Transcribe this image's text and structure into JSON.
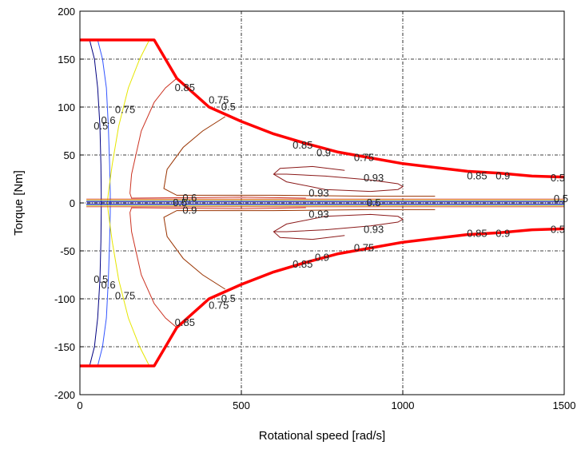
{
  "chart_data": {
    "type": "line",
    "title": "",
    "xlabel": "Rotational speed [rad/s]",
    "ylabel": "Torque [Nm]",
    "xlim": [
      0,
      1500
    ],
    "ylim": [
      -200,
      200
    ],
    "x_ticks": [
      0,
      500,
      1000,
      1500
    ],
    "y_ticks": [
      -200,
      -150,
      -100,
      -50,
      0,
      50,
      100,
      150,
      200
    ],
    "grid": true,
    "grid_style": "dash-dot",
    "colors": {
      "boundary": "#ff0000",
      "c050": "#000080",
      "c060": "#3355ff",
      "c075": "#e6e600",
      "c085": "#cc3322",
      "c090": "#993300",
      "c093": "#8b1a1a"
    },
    "series": [
      {
        "name": "",
        "role": "max-torque envelope",
        "x": [
          0,
          230,
          300,
          400,
          500,
          600,
          700,
          800,
          900,
          1000,
          1100,
          1200,
          1300,
          1400,
          1500
        ],
        "y": [
          170,
          170,
          130,
          100,
          85,
          72,
          62,
          53,
          47,
          41,
          37,
          33,
          31,
          28,
          27
        ]
      },
      {
        "name": "",
        "role": "min-torque envelope",
        "x": [
          0,
          230,
          300,
          400,
          500,
          600,
          700,
          800,
          900,
          1000,
          1100,
          1200,
          1300,
          1400,
          1500
        ],
        "y": [
          -170,
          -170,
          -130,
          -100,
          -85,
          -72,
          -62,
          -53,
          -47,
          -41,
          -37,
          -33,
          -31,
          -28,
          -27
        ]
      }
    ],
    "contours": [
      {
        "level": "0.5",
        "x_upper": [
          30,
          45,
          55,
          62,
          65,
          66,
          66
        ],
        "y_upper": [
          170,
          150,
          120,
          80,
          40,
          10,
          0
        ]
      },
      {
        "level": "0.6",
        "x_upper": [
          55,
          70,
          82,
          88,
          92,
          94,
          94
        ],
        "y_upper": [
          170,
          150,
          120,
          80,
          40,
          10,
          0
        ]
      },
      {
        "level": "0.75",
        "x_upper": [
          215,
          185,
          150,
          120,
          100,
          88,
          85
        ],
        "y_upper": [
          170,
          150,
          120,
          80,
          40,
          10,
          0
        ]
      },
      {
        "level": "0.85",
        "x_upper": [
          300,
          265,
          230,
          190,
          160,
          155,
          160,
          500,
          700
        ],
        "y_upper": [
          130,
          120,
          105,
          75,
          30,
          10,
          5,
          6,
          5
        ]
      },
      {
        "level": "0.9",
        "x_upper": [
          450,
          380,
          320,
          270,
          260,
          300,
          600,
          900,
          1100
        ],
        "y_upper": [
          90,
          75,
          58,
          35,
          15,
          8,
          8,
          7,
          7
        ]
      },
      {
        "level": "0.93",
        "x_upper": [
          820,
          720,
          620,
          600,
          640,
          760,
          900,
          985,
          1000,
          985,
          900,
          760,
          640,
          600
        ],
        "y_upper": [
          34,
          38,
          36,
          30,
          22,
          14,
          12,
          14,
          17,
          20,
          24,
          28,
          30,
          30
        ]
      }
    ],
    "contour_labels": [
      {
        "text": "0.5",
        "x": 65,
        "y": 80
      },
      {
        "text": "0.6",
        "x": 88,
        "y": 86
      },
      {
        "text": "0.75",
        "x": 140,
        "y": 97
      },
      {
        "text": "0.85",
        "x": 325,
        "y": 120
      },
      {
        "text": "0.75",
        "x": 430,
        "y": 107
      },
      {
        "text": "0.5",
        "x": 460,
        "y": 100
      },
      {
        "text": "0.85",
        "x": 690,
        "y": 60
      },
      {
        "text": "0.9",
        "x": 755,
        "y": 52
      },
      {
        "text": "0.75",
        "x": 880,
        "y": 47
      },
      {
        "text": "0.93",
        "x": 910,
        "y": 26
      },
      {
        "text": "0.93",
        "x": 740,
        "y": 10
      },
      {
        "text": "0.93",
        "x": 740,
        "y": -12
      },
      {
        "text": "0.93",
        "x": 910,
        "y": -28
      },
      {
        "text": "0.75",
        "x": 880,
        "y": -47
      },
      {
        "text": "0.9",
        "x": 750,
        "y": -57
      },
      {
        "text": "0.85",
        "x": 690,
        "y": -64
      },
      {
        "text": "0.85",
        "x": 1230,
        "y": 28
      },
      {
        "text": "0.9",
        "x": 1310,
        "y": 28
      },
      {
        "text": "0.5",
        "x": 1480,
        "y": 26
      },
      {
        "text": "0.85",
        "x": 1230,
        "y": -32
      },
      {
        "text": "0.9",
        "x": 1310,
        "y": -32
      },
      {
        "text": "0.5",
        "x": 1480,
        "y": -28
      },
      {
        "text": "0.5",
        "x": 65,
        "y": -80
      },
      {
        "text": "0.6",
        "x": 88,
        "y": -86
      },
      {
        "text": "0.75",
        "x": 140,
        "y": -97
      },
      {
        "text": "0.85",
        "x": 325,
        "y": -125
      },
      {
        "text": "0.75",
        "x": 430,
        "y": -107
      },
      {
        "text": "0.5",
        "x": 460,
        "y": -100
      },
      {
        "text": "0.5",
        "x": 310,
        "y": 0
      },
      {
        "text": "0.6",
        "x": 340,
        "y": 5
      },
      {
        "text": "0.9",
        "x": 340,
        "y": -8
      },
      {
        "text": "0.5",
        "x": 910,
        "y": 0
      },
      {
        "text": "0.5",
        "x": 1490,
        "y": 4
      }
    ]
  }
}
